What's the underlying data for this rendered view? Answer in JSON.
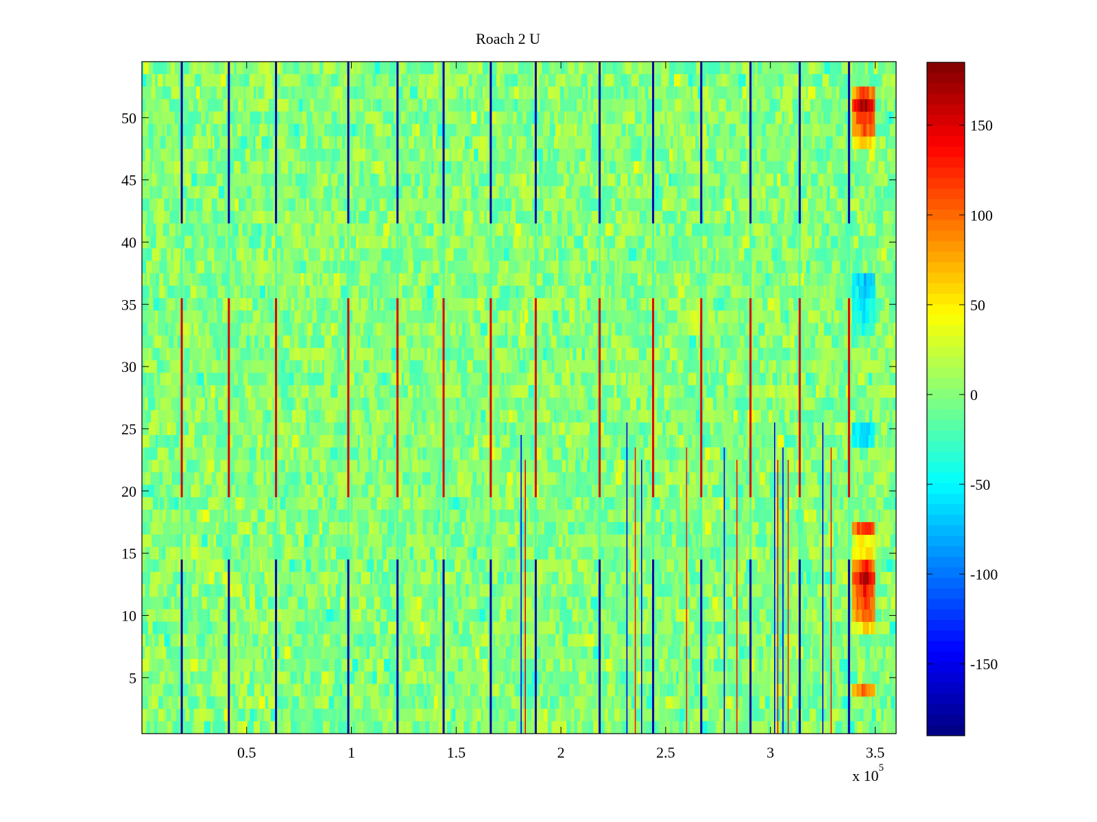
{
  "chart_data": {
    "type": "heatmap",
    "title": "Roach 2 U",
    "xlabel": "",
    "ylabel": "",
    "x_multiplier_label": {
      "base": "x 10",
      "exponent": "5"
    },
    "xlim": [
      0,
      3.6
    ],
    "ylim": [
      0.5,
      54.5
    ],
    "x_ticks": [
      0.5,
      1,
      1.5,
      2,
      2.5,
      3,
      3.5
    ],
    "x_tick_labels": [
      "0.5",
      "1",
      "1.5",
      "2",
      "2.5",
      "3",
      "3.5"
    ],
    "y_ticks": [
      5,
      10,
      15,
      20,
      25,
      30,
      35,
      40,
      45,
      50
    ],
    "y_tick_labels": [
      "5",
      "10",
      "15",
      "20",
      "25",
      "30",
      "35",
      "40",
      "45",
      "50"
    ],
    "rows": 54,
    "colormap": "jet",
    "clim": [
      -190,
      185
    ],
    "colorbar": {
      "ticks": [
        150,
        100,
        50,
        0,
        -50,
        -100,
        -150
      ],
      "tick_labels": [
        "150",
        "100",
        "50",
        "0",
        "-50",
        "-100",
        "-150"
      ]
    },
    "background_level": 0,
    "noise_amplitude": 25,
    "vertical_stripes_x": [
      0.19,
      0.415,
      0.64,
      0.985,
      1.22,
      1.44,
      1.665,
      1.88,
      2.185,
      2.44,
      2.67,
      2.905,
      3.14,
      3.375
    ],
    "stripe_segments": [
      {
        "y_from": 0.5,
        "y_to": 14.5,
        "value": -175
      },
      {
        "y_from": 14.5,
        "y_to": 19.5,
        "value": -20
      },
      {
        "y_from": 19.5,
        "y_to": 35.5,
        "value": 150
      },
      {
        "y_from": 35.5,
        "y_to": 41.5,
        "value": -20
      },
      {
        "y_from": 41.5,
        "y_to": 54.5,
        "value": -175
      }
    ],
    "thin_lines": [
      {
        "x": 1.81,
        "y_from": 0.5,
        "y_to": 24.5,
        "value": -150
      },
      {
        "x": 1.83,
        "y_from": 0.5,
        "y_to": 22.5,
        "value": 140
      },
      {
        "x": 2.315,
        "y_from": 0.5,
        "y_to": 25.5,
        "value": -150
      },
      {
        "x": 2.355,
        "y_from": 0.5,
        "y_to": 23.5,
        "value": 130
      },
      {
        "x": 2.385,
        "y_from": 0.5,
        "y_to": 22.5,
        "value": -140
      },
      {
        "x": 2.6,
        "y_from": 0.5,
        "y_to": 23.5,
        "value": 130
      },
      {
        "x": 2.78,
        "y_from": 0.5,
        "y_to": 23.5,
        "value": -150
      },
      {
        "x": 2.84,
        "y_from": 0.5,
        "y_to": 22.5,
        "value": 130
      },
      {
        "x": 3.02,
        "y_from": 0.5,
        "y_to": 25.5,
        "value": -150
      },
      {
        "x": 3.035,
        "y_from": 0.5,
        "y_to": 22.5,
        "value": 140
      },
      {
        "x": 3.06,
        "y_from": 0.5,
        "y_to": 23.5,
        "value": -150
      },
      {
        "x": 3.085,
        "y_from": 0.5,
        "y_to": 22.5,
        "value": 130
      },
      {
        "x": 3.25,
        "y_from": 0.5,
        "y_to": 25.5,
        "value": -150
      },
      {
        "x": 3.29,
        "y_from": 0.5,
        "y_to": 23.5,
        "value": 130
      }
    ],
    "hot_block": {
      "x_from": 3.39,
      "x_to": 3.5,
      "rows": [
        {
          "y": 4,
          "value": 110
        },
        {
          "y": 9,
          "value": 60
        },
        {
          "y": 10,
          "value": 110
        },
        {
          "y": 11,
          "value": 125
        },
        {
          "y": 12,
          "value": 135
        },
        {
          "y": 13,
          "value": 175
        },
        {
          "y": 14,
          "value": 130
        },
        {
          "y": 15,
          "value": 60
        },
        {
          "y": 16,
          "value": 50
        },
        {
          "y": 17,
          "value": 135
        },
        {
          "y": 24,
          "value": -60
        },
        {
          "y": 25,
          "value": -70
        },
        {
          "y": 33,
          "value": -45
        },
        {
          "y": 34,
          "value": -55
        },
        {
          "y": 35,
          "value": -60
        },
        {
          "y": 36,
          "value": -65
        },
        {
          "y": 37,
          "value": -70
        },
        {
          "y": 48,
          "value": 60
        },
        {
          "y": 49,
          "value": 120
        },
        {
          "y": 50,
          "value": 130
        },
        {
          "y": 51,
          "value": 180
        },
        {
          "y": 52,
          "value": 120
        }
      ]
    }
  }
}
